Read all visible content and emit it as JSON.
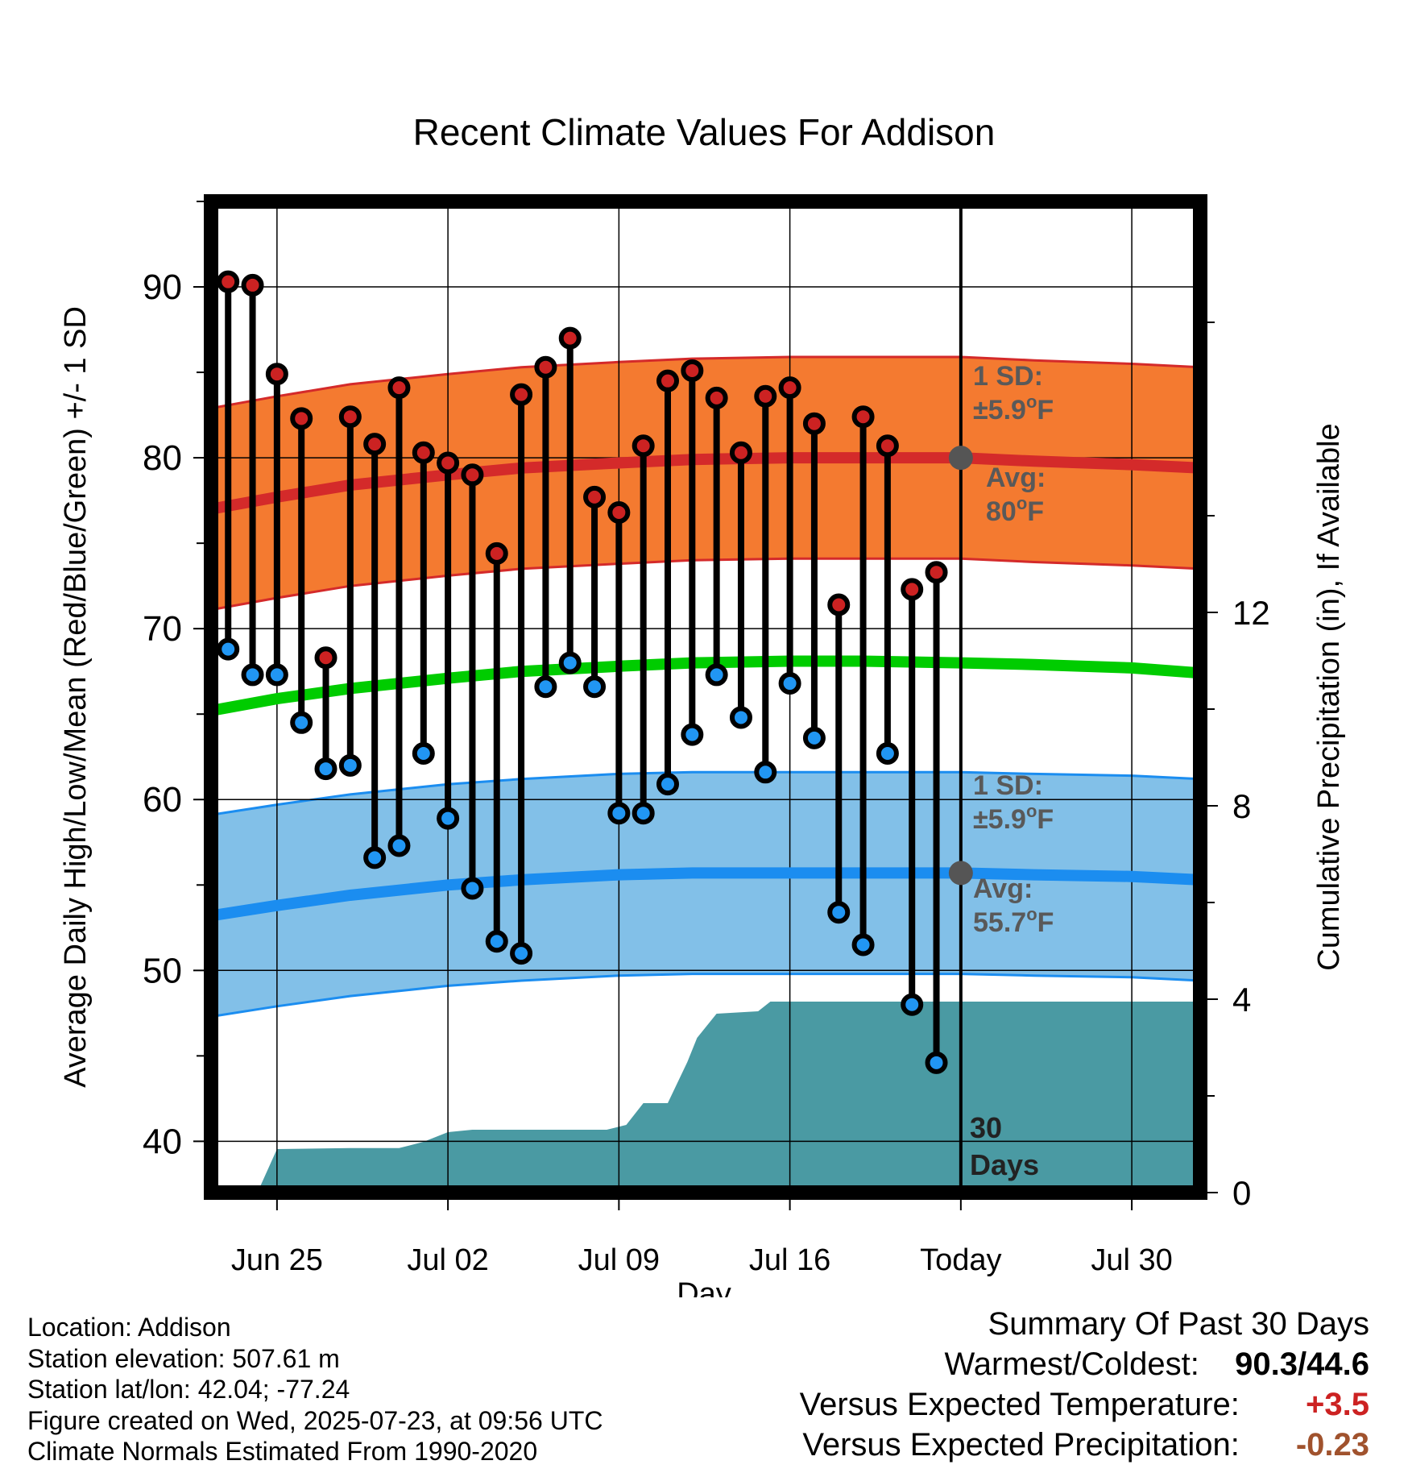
{
  "chart_data": {
    "type": "line",
    "title": "Recent Climate Values For Addison",
    "xlabel": "Day",
    "ylabel": "Average Daily High/Low/Mean (Red/Blue/Green) +/- 1 SD",
    "y2label": "Cumulative Precipitation (in), If Available",
    "x_ticks": [
      "Jun 25",
      "Jul 02",
      "Jul 09",
      "Jul 16",
      "Today",
      "Jul 30"
    ],
    "x_tick_days": [
      2,
      9,
      16,
      23,
      30,
      37
    ],
    "xlim": [
      -0.7,
      39.8
    ],
    "y_ticks": [
      "40",
      "50",
      "60",
      "70",
      "80",
      "90"
    ],
    "ylim": [
      37,
      95
    ],
    "y2_ticks": [
      "0",
      "4",
      "8",
      "12"
    ],
    "y2lim": [
      0,
      20.5
    ],
    "today_day": 30,
    "days_label": "30 Days",
    "grid": true,
    "observed_days": [
      0,
      1,
      2,
      3,
      4,
      5,
      6,
      7,
      8,
      9,
      10,
      11,
      12,
      13,
      14,
      15,
      16,
      17,
      18,
      19,
      20,
      21,
      22,
      23,
      24,
      25,
      26,
      27,
      28,
      29
    ],
    "observed_high": [
      90.3,
      90.1,
      84.9,
      82.3,
      68.3,
      82.4,
      80.8,
      84.1,
      80.3,
      79.7,
      79.0,
      74.4,
      83.7,
      85.3,
      87.0,
      77.7,
      76.8,
      80.7,
      84.5,
      85.1,
      83.5,
      80.3,
      83.6,
      84.1,
      82.0,
      71.4,
      82.4,
      80.7,
      72.3,
      73.3
    ],
    "observed_low": [
      68.8,
      67.3,
      67.3,
      64.5,
      61.8,
      62.0,
      56.6,
      57.3,
      62.7,
      58.9,
      54.8,
      51.7,
      51.0,
      66.6,
      68.0,
      66.6,
      59.2,
      59.2,
      60.9,
      63.8,
      67.3,
      64.8,
      61.6,
      66.8,
      63.6,
      53.4,
      51.5,
      62.7,
      48.0,
      44.6
    ],
    "normal_days": [
      -0.7,
      2,
      5,
      9,
      12,
      16,
      19,
      23,
      26,
      30,
      33,
      37,
      39.8
    ],
    "normal_high": [
      77.0,
      77.7,
      78.4,
      79.0,
      79.4,
      79.7,
      79.9,
      80.0,
      80.0,
      80.0,
      79.8,
      79.6,
      79.4
    ],
    "normal_low": [
      53.2,
      53.8,
      54.4,
      55.0,
      55.3,
      55.6,
      55.7,
      55.7,
      55.7,
      55.7,
      55.6,
      55.5,
      55.3
    ],
    "normal_mean": [
      65.2,
      65.9,
      66.5,
      67.1,
      67.5,
      67.8,
      68.0,
      68.1,
      68.1,
      68.0,
      67.9,
      67.7,
      67.4
    ],
    "high_sd": 5.9,
    "low_sd": 5.9,
    "precip_days": [
      1.2,
      2.0,
      5.0,
      7.0,
      8.0,
      9.0,
      10.0,
      15.5,
      16.3,
      17.0,
      18.0,
      18.8,
      19.2,
      20.0,
      21.7,
      22.2,
      23.0,
      39.8
    ],
    "precip_cum": [
      0.0,
      0.9,
      0.92,
      0.92,
      1.05,
      1.25,
      1.3,
      1.3,
      1.4,
      1.85,
      1.85,
      2.7,
      3.2,
      3.7,
      3.75,
      3.95,
      3.95,
      3.95
    ],
    "annotations": {
      "high_sd_label": "1 SD:",
      "high_sd_value": "±5.9",
      "high_avg_label": "Avg:",
      "high_avg_value": "80",
      "low_sd_label": "1 SD:",
      "low_sd_value": "±5.9",
      "low_avg_label": "Avg:",
      "low_avg_value": "55.7",
      "unit": "F"
    },
    "colors": {
      "high_band": "#f47a30",
      "high_line": "#d42a2a",
      "low_band": "#82c0e8",
      "low_line": "#1b8df0",
      "mean_line": "#00cc00",
      "precip": "#4a9aa3",
      "high_dot": "#cc2222",
      "low_dot": "#2196f3",
      "annotation_text": "#595959"
    }
  },
  "info": {
    "location": "Location: Addison",
    "elevation": "Station elevation: 507.61 m",
    "latlon": "Station lat/lon: 42.04; -77.24",
    "created": "Figure created on Wed, 2025-07-23, at 09:56 UTC",
    "normals": "Climate Normals Estimated From 1990-2020"
  },
  "summary": {
    "title": "Summary Of Past 30 Days",
    "warmest_label": "Warmest/Coldest:",
    "warmest_value": "90.3/44.6",
    "temp_label": "Versus Expected Temperature:",
    "temp_value": "+3.5",
    "precip_label": "Versus Expected Precipitation:",
    "precip_value": "-0.23"
  }
}
